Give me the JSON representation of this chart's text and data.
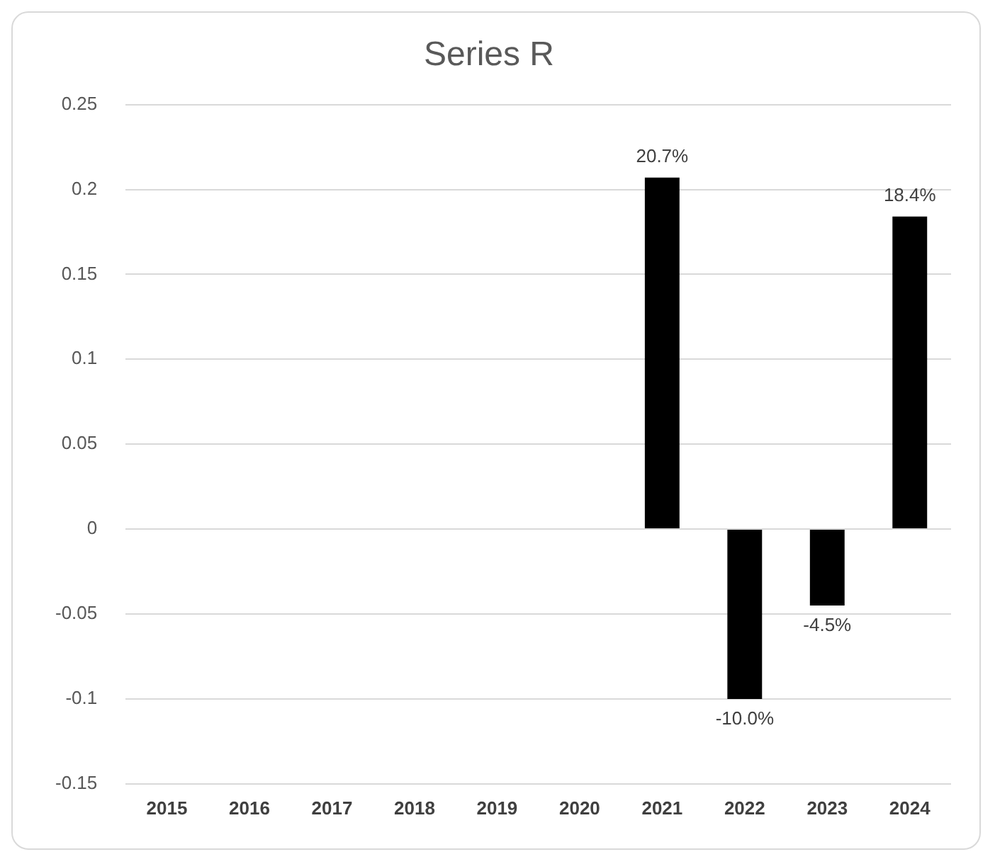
{
  "chart_data": {
    "type": "bar",
    "title": "Series R",
    "categories": [
      "2015",
      "2016",
      "2017",
      "2018",
      "2019",
      "2020",
      "2021",
      "2022",
      "2023",
      "2024"
    ],
    "values": [
      null,
      null,
      null,
      null,
      null,
      null,
      0.207,
      -0.1,
      -0.045,
      0.184
    ],
    "value_labels": [
      null,
      null,
      null,
      null,
      null,
      null,
      "20.7%",
      "-10.0%",
      "-4.5%",
      "18.4%"
    ],
    "color": "#000000",
    "ylim": [
      -0.15,
      0.25
    ],
    "yticks": [
      -0.15,
      -0.1,
      -0.05,
      0,
      0.05,
      0.1,
      0.15,
      0.2,
      0.25
    ],
    "grid": "y",
    "legend": false
  }
}
